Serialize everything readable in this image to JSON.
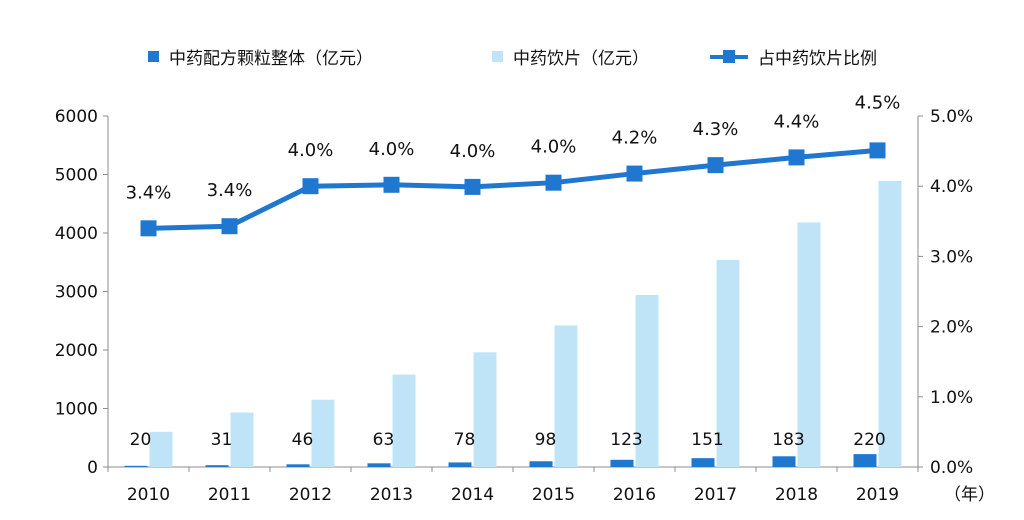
{
  "chart_data": {
    "type": "bar+line",
    "categories": [
      "2010",
      "2011",
      "2012",
      "2013",
      "2014",
      "2015",
      "2016",
      "2017",
      "2018",
      "2019"
    ],
    "x_unit": "（年）",
    "series": [
      {
        "name": "中药配方颗粒整体（亿元）",
        "type": "bar",
        "axis": "left",
        "color": "#1f77d0",
        "values": [
          20,
          31,
          46,
          63,
          78,
          98,
          123,
          151,
          183,
          220
        ],
        "labels": [
          "20",
          "31",
          "46",
          "63",
          "78",
          "98",
          "123",
          "151",
          "183",
          "220"
        ]
      },
      {
        "name": "中药饮片（亿元）",
        "type": "bar",
        "axis": "left",
        "color": "#bfe3f7",
        "values": [
          600,
          930,
          1150,
          1580,
          1960,
          2420,
          2940,
          3540,
          4180,
          4890
        ]
      },
      {
        "name": "占中药饮片比例",
        "type": "line",
        "axis": "right",
        "color": "#1f77d0",
        "values": [
          3.4,
          3.4,
          4.0,
          4.0,
          4.0,
          4.0,
          4.2,
          4.3,
          4.4,
          4.5
        ],
        "plot_values": [
          3.4,
          3.43,
          4.0,
          4.02,
          3.99,
          4.05,
          4.18,
          4.3,
          4.41,
          4.51
        ],
        "labels": [
          "3.4%",
          "3.4%",
          "4.0%",
          "4.0%",
          "4.0%",
          "4.0%",
          "4.2%",
          "4.3%",
          "4.4%",
          "4.5%"
        ]
      }
    ],
    "y_left": {
      "min": 0,
      "max": 6000,
      "ticks": [
        "0",
        "1000",
        "2000",
        "3000",
        "4000",
        "5000",
        "6000"
      ]
    },
    "y_right": {
      "min": 0,
      "max": 5,
      "ticks": [
        "0.0%",
        "1.0%",
        "2.0%",
        "3.0%",
        "4.0%",
        "5.0%"
      ]
    },
    "grid": false,
    "legend_position": "top"
  }
}
